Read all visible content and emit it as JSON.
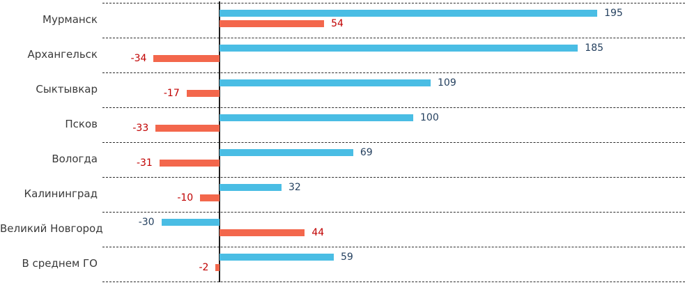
{
  "chart_data": {
    "type": "bar",
    "orientation": "horizontal",
    "title": "",
    "categories": [
      "Мурманск",
      "Архангельск",
      "Сыктывкар",
      "Псков",
      "Вологда",
      "Калининград",
      "Великий Новгород",
      "В среднем ГО"
    ],
    "series": [
      {
        "name": "blue-series",
        "color": "#4ABDE4",
        "label_color": "#24405F",
        "values": [
          195,
          185,
          109,
          100,
          69,
          32,
          -30,
          59
        ]
      },
      {
        "name": "red-series",
        "color": "#F3674C",
        "label_color": "#C00000",
        "values": [
          54,
          -34,
          -17,
          -33,
          -31,
          -10,
          44,
          -2
        ]
      }
    ],
    "xlim": [
      -60,
      240
    ],
    "grid": "horizontal-dashed",
    "legend": "none",
    "axis_line_color": "#1f1f1f",
    "gridline_color": "#2b2b2b",
    "category_label_color": "#3a3a3a"
  }
}
